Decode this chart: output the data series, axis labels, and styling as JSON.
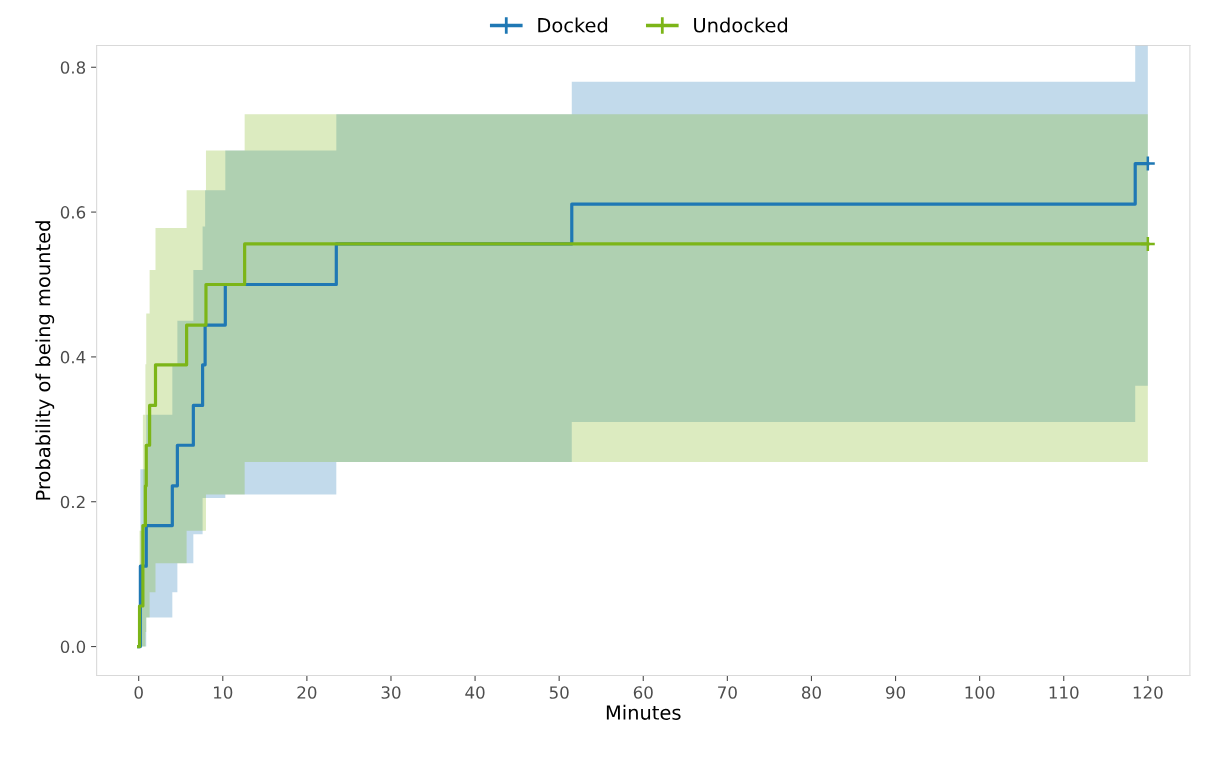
{
  "chart_data": {
    "type": "step",
    "xlabel": "Minutes",
    "ylabel": "Probability of being mounted",
    "xlim": [
      -5,
      125
    ],
    "ylim": [
      -0.04,
      0.83
    ],
    "xticks": [
      0,
      10,
      20,
      30,
      40,
      50,
      60,
      70,
      80,
      90,
      100,
      110,
      120
    ],
    "yticks": [
      {
        "value": 0,
        "label": "0.0"
      },
      {
        "value": 0.2,
        "label": "0.2"
      },
      {
        "value": 0.4,
        "label": "0.4"
      },
      {
        "value": 0.6,
        "label": "0.6"
      },
      {
        "value": 0.8,
        "label": "0.8"
      }
    ],
    "grid": false,
    "legend": "top",
    "series": [
      {
        "name": "Docked",
        "color": "#1f78b4",
        "x": [
          0,
          0.2,
          0.9,
          4.0,
          4.6,
          6.5,
          7.6,
          7.9,
          10.3,
          23.5,
          51.5,
          118.5,
          120
        ],
        "values": [
          0,
          0.111,
          0.167,
          0.222,
          0.278,
          0.333,
          0.389,
          0.444,
          0.5,
          0.556,
          0.611,
          0.667,
          0.667
        ],
        "lower": [
          0,
          0,
          0.04,
          0.075,
          0.115,
          0.155,
          0.205,
          0.205,
          0.21,
          0.255,
          0.31,
          0.36,
          0.36
        ],
        "upper": [
          0,
          0.245,
          0.32,
          0.39,
          0.45,
          0.52,
          0.58,
          0.63,
          0.685,
          0.735,
          0.78,
          0.83,
          0.83
        ]
      },
      {
        "name": "Undocked",
        "color": "#7cb518",
        "x": [
          0,
          0.1,
          0.5,
          0.8,
          0.9,
          1.3,
          2.0,
          5.7,
          8.0,
          12.6,
          120
        ],
        "values": [
          0,
          0.056,
          0.167,
          0.222,
          0.278,
          0.333,
          0.389,
          0.444,
          0.5,
          0.556,
          0.556
        ],
        "lower": [
          0,
          0,
          0,
          0.02,
          0.04,
          0.075,
          0.115,
          0.16,
          0.21,
          0.255,
          0.255
        ],
        "upper": [
          0,
          0.16,
          0.32,
          0.39,
          0.46,
          0.52,
          0.578,
          0.63,
          0.685,
          0.735,
          0.735
        ]
      }
    ]
  }
}
